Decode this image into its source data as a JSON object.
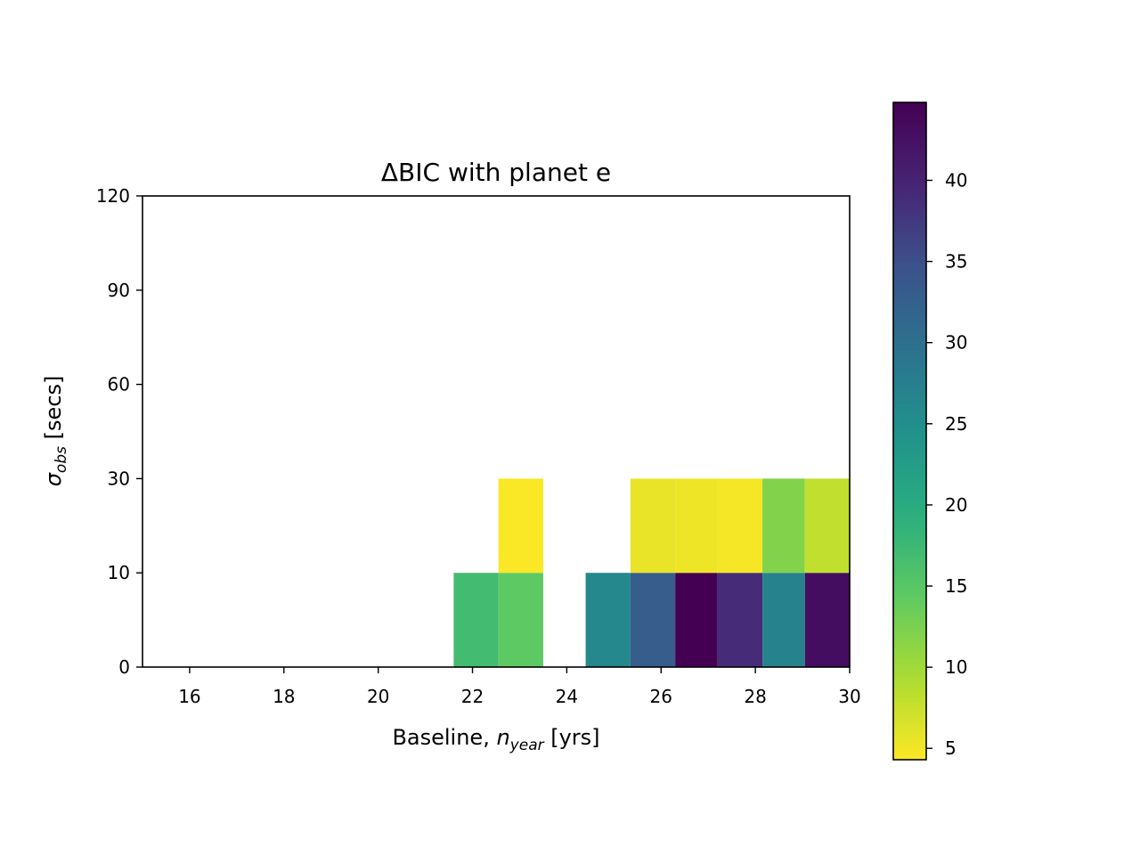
{
  "chart_data": {
    "type": "heatmap",
    "title": "ΔBIC with planet e",
    "xlabel": {
      "prefix": "Baseline, ",
      "var": "n",
      "sub": "year",
      "suffix": " [yrs]"
    },
    "ylabel": {
      "var": "σ",
      "sub": "obs",
      "suffix": " [secs]"
    },
    "xlim": [
      15,
      30
    ],
    "ylim": [
      0,
      120
    ],
    "x_ticks": [
      16,
      18,
      20,
      22,
      24,
      26,
      28,
      30
    ],
    "y_ticks": [
      0,
      10,
      30,
      60,
      90,
      120
    ],
    "y_bin_edges": [
      0,
      10,
      30,
      60,
      90,
      120
    ],
    "x_bin_edges": [
      21.6,
      22.55,
      23.5,
      24.4,
      25.35,
      26.3,
      27.2,
      28.15,
      29.05,
      30
    ],
    "cells": [
      {
        "x0": 21.6,
        "x1": 22.55,
        "y_bin": 0,
        "value": 17
      },
      {
        "x0": 22.55,
        "x1": 23.5,
        "y_bin": 0,
        "value": 14.5
      },
      {
        "x0": 22.55,
        "x1": 23.5,
        "y_bin": 1,
        "value": 4.5
      },
      {
        "x0": 24.4,
        "x1": 25.35,
        "y_bin": 0,
        "value": 26
      },
      {
        "x0": 25.35,
        "x1": 26.3,
        "y_bin": 0,
        "value": 33
      },
      {
        "x0": 25.35,
        "x1": 26.3,
        "y_bin": 1,
        "value": 5.5
      },
      {
        "x0": 26.3,
        "x1": 27.2,
        "y_bin": 0,
        "value": 45
      },
      {
        "x0": 26.3,
        "x1": 27.2,
        "y_bin": 1,
        "value": 5.2
      },
      {
        "x0": 27.2,
        "x1": 28.15,
        "y_bin": 0,
        "value": 39
      },
      {
        "x0": 27.2,
        "x1": 28.15,
        "y_bin": 1,
        "value": 4.8
      },
      {
        "x0": 28.15,
        "x1": 29.05,
        "y_bin": 0,
        "value": 27
      },
      {
        "x0": 28.15,
        "x1": 29.05,
        "y_bin": 1,
        "value": 12
      },
      {
        "x0": 29.05,
        "x1": 30,
        "y_bin": 0,
        "value": 43
      },
      {
        "x0": 29.05,
        "x1": 30,
        "y_bin": 1,
        "value": 8
      }
    ],
    "colorbar": {
      "colormap": "viridis_r",
      "vmin": 4.3,
      "vmax": 44.8,
      "ticks": [
        5,
        10,
        15,
        20,
        25,
        30,
        35,
        40
      ]
    },
    "grid": false
  }
}
